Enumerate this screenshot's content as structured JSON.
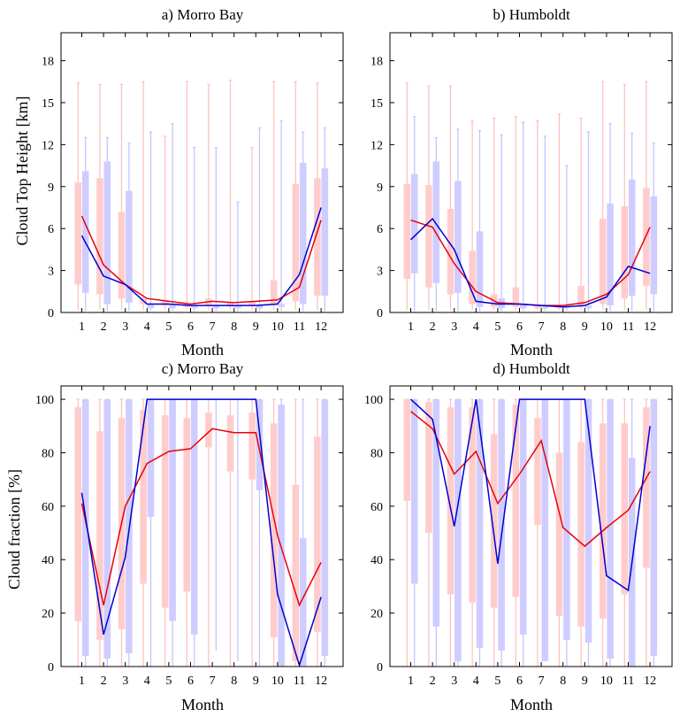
{
  "chart_data": [
    {
      "type": "box",
      "title": "a) Morro Bay",
      "xlabel": "Month",
      "ylabel": "Cloud Top Height [km]",
      "categories": [
        "1",
        "2",
        "3",
        "4",
        "5",
        "6",
        "7",
        "8",
        "9",
        "10",
        "11",
        "12"
      ],
      "ylim": [
        0,
        20
      ],
      "yticks": [
        0,
        3,
        6,
        9,
        12,
        15,
        18
      ],
      "ytick_labels": [
        "0",
        "3",
        "6",
        "9",
        "12",
        "15",
        "18"
      ],
      "series": [
        {
          "name": "series-red",
          "color": "#e8000b",
          "box_color": "#ffcccc",
          "whisker_color": "#ffbdbd",
          "median": [
            6.9,
            3.4,
            2.0,
            1.0,
            0.8,
            0.6,
            0.8,
            0.7,
            0.8,
            0.9,
            1.8,
            6.6
          ],
          "q1": [
            2.0,
            1.3,
            1.0,
            0.6,
            0.5,
            0.4,
            0.5,
            0.4,
            0.5,
            0.6,
            0.8,
            1.2
          ],
          "q3": [
            9.3,
            9.6,
            7.2,
            1.0,
            0.8,
            0.6,
            1.0,
            0.7,
            0.8,
            2.3,
            9.2,
            9.6
          ],
          "min": [
            0.2,
            0.2,
            0.2,
            0.2,
            0.2,
            0.2,
            0.2,
            0.2,
            0.2,
            0.2,
            0.2,
            0.2
          ],
          "max": [
            16.4,
            16.3,
            16.3,
            16.5,
            12.6,
            16.5,
            16.3,
            16.6,
            11.8,
            16.5,
            16.5,
            16.4
          ]
        },
        {
          "name": "series-blue",
          "color": "#0000d0",
          "box_color": "#cfcdff",
          "whisker_color": "#c2c0ff",
          "median": [
            5.5,
            2.6,
            2.0,
            0.6,
            0.6,
            0.5,
            0.5,
            0.5,
            0.5,
            0.6,
            2.7,
            7.5
          ],
          "q1": [
            1.4,
            0.6,
            0.7,
            0.3,
            0.3,
            0.3,
            0.3,
            0.3,
            0.3,
            0.4,
            0.6,
            1.2
          ],
          "q3": [
            10.1,
            10.8,
            8.7,
            0.6,
            0.6,
            0.5,
            0.5,
            0.5,
            0.5,
            0.6,
            10.7,
            10.3
          ],
          "min": [
            0.1,
            0.1,
            0.1,
            0.1,
            0.1,
            0.1,
            0.1,
            0.1,
            0.1,
            0.1,
            0.1,
            0.1
          ],
          "max": [
            12.5,
            12.5,
            12.1,
            12.9,
            13.5,
            11.8,
            11.8,
            7.9,
            13.2,
            13.7,
            12.9,
            13.2
          ]
        }
      ]
    },
    {
      "type": "box",
      "title": "b) Humboldt",
      "xlabel": "Month",
      "ylabel": "",
      "categories": [
        "1",
        "2",
        "3",
        "4",
        "5",
        "6",
        "7",
        "8",
        "9",
        "10",
        "11",
        "12"
      ],
      "ylim": [
        0,
        20
      ],
      "yticks": [
        0,
        3,
        6,
        9,
        12,
        15,
        18
      ],
      "ytick_labels": [
        "0",
        "3",
        "6",
        "9",
        "12",
        "15",
        "18"
      ],
      "series": [
        {
          "name": "series-red",
          "color": "#e8000b",
          "box_color": "#ffcccc",
          "whisker_color": "#ffbdbd",
          "median": [
            6.6,
            6.1,
            3.5,
            1.5,
            0.7,
            0.6,
            0.5,
            0.5,
            0.7,
            1.3,
            2.7,
            6.1
          ],
          "q1": [
            2.4,
            1.8,
            1.3,
            0.6,
            0.4,
            0.4,
            0.3,
            0.3,
            0.4,
            0.6,
            1.0,
            1.9
          ],
          "q3": [
            9.2,
            9.1,
            7.4,
            4.4,
            1.3,
            1.8,
            0.5,
            0.5,
            1.9,
            6.7,
            7.6,
            8.9
          ],
          "min": [
            0.2,
            0.2,
            0.2,
            0.2,
            0.2,
            0.2,
            0.2,
            0.2,
            0.2,
            0.2,
            0.2,
            0.2
          ],
          "max": [
            16.4,
            16.2,
            16.2,
            13.7,
            13.9,
            14.0,
            13.7,
            14.2,
            13.9,
            16.5,
            16.3,
            16.5
          ]
        },
        {
          "name": "series-blue",
          "color": "#0000d0",
          "box_color": "#cfcdff",
          "whisker_color": "#c2c0ff",
          "median": [
            5.2,
            6.7,
            4.5,
            0.8,
            0.6,
            0.6,
            0.5,
            0.4,
            0.5,
            1.1,
            3.3,
            2.8
          ],
          "q1": [
            2.8,
            2.1,
            1.4,
            0.4,
            0.3,
            0.3,
            0.3,
            0.3,
            0.3,
            0.5,
            1.2,
            1.3
          ],
          "q3": [
            9.9,
            10.8,
            9.4,
            5.8,
            1.0,
            0.6,
            0.5,
            0.4,
            0.5,
            7.8,
            9.5,
            8.3
          ],
          "min": [
            0.1,
            0.1,
            0.1,
            0.1,
            0.1,
            0.1,
            0.1,
            0.1,
            0.1,
            0.1,
            0.1,
            0.1
          ],
          "max": [
            14.0,
            12.5,
            13.1,
            13.0,
            12.7,
            13.6,
            12.6,
            10.5,
            12.9,
            13.5,
            12.8,
            12.1
          ]
        }
      ]
    },
    {
      "type": "box",
      "title": "c) Morro Bay",
      "xlabel": "Month",
      "ylabel": "Cloud fraction [%]",
      "categories": [
        "1",
        "2",
        "3",
        "4",
        "5",
        "6",
        "7",
        "8",
        "9",
        "10",
        "11",
        "12"
      ],
      "ylim": [
        0,
        105
      ],
      "yticks": [
        0,
        20,
        40,
        60,
        80,
        100
      ],
      "ytick_labels": [
        "0",
        "20",
        "40",
        "60",
        "80",
        "100"
      ],
      "series": [
        {
          "name": "series-red",
          "color": "#e8000b",
          "box_color": "#ffcccc",
          "whisker_color": "#ffbdbd",
          "median": [
            61,
            23,
            60,
            76,
            80.5,
            81.5,
            89,
            87.5,
            87.5,
            49,
            23,
            39
          ],
          "q1": [
            17,
            10,
            14,
            31,
            22,
            28,
            82,
            73,
            70,
            11,
            2,
            13
          ],
          "q3": [
            97,
            88,
            93,
            96,
            94,
            93,
            95,
            94,
            95,
            91,
            68,
            86
          ],
          "min": [
            0,
            0,
            0,
            0,
            0,
            0,
            0,
            0,
            0,
            0,
            0,
            0
          ],
          "max": [
            100,
            100,
            100,
            100,
            100,
            100,
            100,
            100,
            100,
            100,
            100,
            100
          ]
        },
        {
          "name": "series-blue",
          "color": "#0000d0",
          "box_color": "#cfcdff",
          "whisker_color": "#c2c0ff",
          "median": [
            65,
            12,
            41,
            100,
            100,
            100,
            100,
            100,
            100,
            27,
            0.5,
            26
          ],
          "q1": [
            4,
            3,
            5,
            56,
            17,
            12,
            100,
            100,
            66,
            0,
            0,
            4
          ],
          "q3": [
            100,
            100,
            100,
            100,
            100,
            100,
            100,
            100,
            100,
            98,
            48,
            100
          ],
          "min": [
            0,
            0,
            0,
            0,
            0,
            0,
            6,
            2,
            0,
            0,
            0,
            0
          ],
          "max": [
            100,
            100,
            100,
            100,
            100,
            100,
            100,
            100,
            100,
            100,
            100,
            100
          ]
        }
      ]
    },
    {
      "type": "box",
      "title": "d) Humboldt",
      "xlabel": "Month",
      "ylabel": "",
      "categories": [
        "1",
        "2",
        "3",
        "4",
        "5",
        "6",
        "7",
        "8",
        "9",
        "10",
        "11",
        "12"
      ],
      "ylim": [
        0,
        105
      ],
      "yticks": [
        0,
        20,
        40,
        60,
        80,
        100
      ],
      "ytick_labels": [
        "0",
        "20",
        "40",
        "60",
        "80",
        "100"
      ],
      "series": [
        {
          "name": "series-red",
          "color": "#e8000b",
          "box_color": "#ffcccc",
          "whisker_color": "#ffbdbd",
          "median": [
            95.5,
            89,
            72,
            80.5,
            61,
            72,
            84.5,
            52,
            45,
            52,
            58.5,
            73
          ],
          "q1": [
            62,
            50,
            27,
            24,
            22,
            26,
            53,
            19,
            15,
            18,
            27,
            37
          ],
          "q3": [
            100,
            99,
            97,
            97,
            87,
            98,
            93,
            80,
            84,
            91,
            91,
            97
          ],
          "min": [
            0,
            0,
            0,
            0,
            0,
            0,
            0,
            0,
            0,
            0,
            0,
            0
          ],
          "max": [
            100,
            100,
            100,
            100,
            100,
            100,
            100,
            100,
            100,
            100,
            100,
            100
          ]
        },
        {
          "name": "series-blue",
          "color": "#0000d0",
          "box_color": "#cfcdff",
          "whisker_color": "#c2c0ff",
          "median": [
            100,
            92.5,
            52.5,
            100,
            38.5,
            100,
            100,
            100,
            100,
            34,
            28.5,
            90
          ],
          "q1": [
            31,
            15,
            2,
            7,
            6,
            12,
            2,
            10,
            9,
            3,
            0,
            4
          ],
          "q3": [
            100,
            100,
            100,
            100,
            100,
            100,
            100,
            100,
            100,
            100,
            78,
            100
          ],
          "min": [
            0,
            0,
            0,
            0,
            0,
            0,
            2,
            0,
            0,
            0,
            0,
            0
          ],
          "max": [
            100,
            100,
            100,
            100,
            100,
            100,
            100,
            100,
            100,
            100,
            100,
            100
          ]
        }
      ]
    }
  ]
}
